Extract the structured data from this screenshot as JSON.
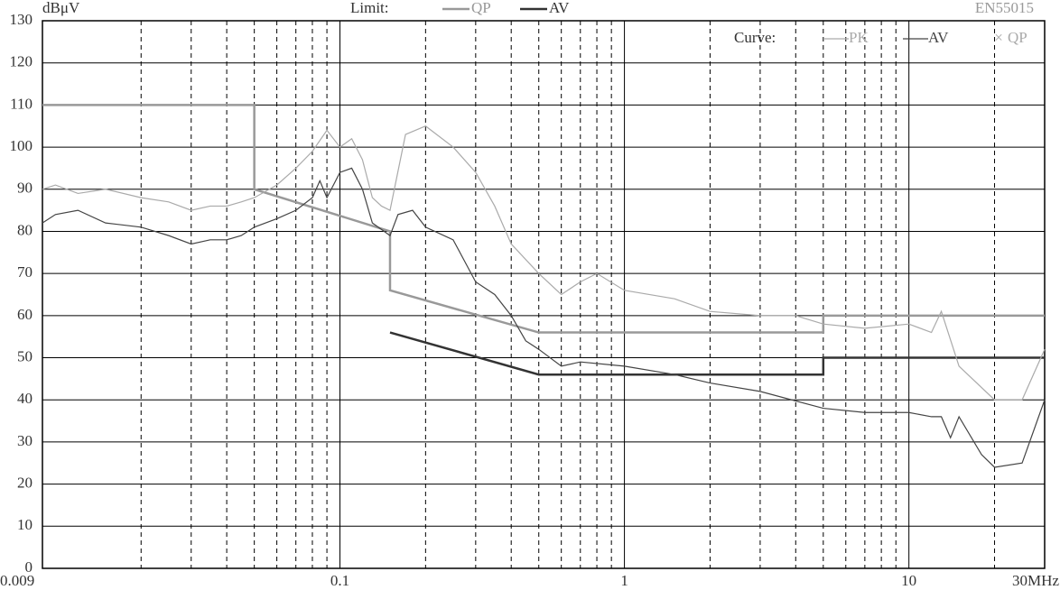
{
  "chart_data": {
    "type": "line",
    "ylabel": "dBμV",
    "standard": "EN55015",
    "limit_label": "Limit:",
    "curve_label": "Curve:",
    "xscale": "log",
    "xlim": [
      0.009,
      30
    ],
    "ylim": [
      0,
      130
    ],
    "xticks": [
      {
        "value": 0.009,
        "label": "0.009"
      },
      0.1,
      1,
      10,
      {
        "value": 30,
        "label": "30MHz"
      }
    ],
    "yticks": [
      0,
      10,
      20,
      30,
      40,
      50,
      60,
      70,
      80,
      90,
      100,
      110,
      120,
      130
    ],
    "x_minor_grid": [
      0.02,
      0.03,
      0.04,
      0.05,
      0.06,
      0.07,
      0.08,
      0.09,
      0.2,
      0.3,
      0.4,
      0.5,
      0.6,
      0.7,
      0.8,
      0.9,
      2,
      3,
      4,
      5,
      6,
      7,
      8,
      9,
      20
    ],
    "grid": true,
    "series": [
      {
        "name": "QP",
        "group": "limit",
        "color": "#999999",
        "x": [
          0.009,
          0.05,
          0.05,
          0.15,
          0.15,
          0.5,
          5,
          5,
          30
        ],
        "values": [
          110,
          110,
          90,
          80,
          66,
          56,
          56,
          60,
          60
        ]
      },
      {
        "name": "AV",
        "group": "limit",
        "color": "#333333",
        "x": [
          0.15,
          0.5,
          5,
          5,
          30
        ],
        "values": [
          56,
          46,
          46,
          50,
          50
        ]
      },
      {
        "name": "PK",
        "group": "curve",
        "color": "#aaaaaa",
        "x": [
          0.009,
          0.01,
          0.012,
          0.015,
          0.02,
          0.025,
          0.03,
          0.035,
          0.04,
          0.045,
          0.05,
          0.06,
          0.07,
          0.08,
          0.09,
          0.1,
          0.11,
          0.12,
          0.13,
          0.14,
          0.15,
          0.17,
          0.2,
          0.25,
          0.3,
          0.35,
          0.4,
          0.5,
          0.6,
          0.7,
          0.8,
          1,
          1.5,
          2,
          3,
          4,
          5,
          7,
          10,
          12,
          13,
          15,
          20,
          25,
          30
        ],
        "values": [
          90,
          91,
          89,
          90,
          88,
          87,
          85,
          86,
          86,
          87,
          88,
          91,
          95,
          99,
          104,
          100,
          102,
          97,
          88,
          86,
          85,
          103,
          105,
          100,
          94,
          86,
          77,
          70,
          65,
          68,
          70,
          66,
          64,
          61,
          60,
          60,
          58,
          57,
          58,
          56,
          61,
          48,
          40,
          40,
          52
        ]
      },
      {
        "name": "AV",
        "group": "curve",
        "color": "#444444",
        "x": [
          0.009,
          0.01,
          0.012,
          0.015,
          0.02,
          0.025,
          0.03,
          0.035,
          0.04,
          0.045,
          0.05,
          0.06,
          0.07,
          0.08,
          0.085,
          0.09,
          0.1,
          0.11,
          0.12,
          0.13,
          0.15,
          0.16,
          0.18,
          0.2,
          0.25,
          0.3,
          0.35,
          0.4,
          0.45,
          0.5,
          0.6,
          0.7,
          1,
          1.5,
          2,
          3,
          5,
          7,
          10,
          12,
          13,
          14,
          15,
          18,
          20,
          25,
          30
        ],
        "values": [
          82,
          84,
          85,
          82,
          81,
          79,
          77,
          78,
          78,
          79,
          81,
          83,
          85,
          88,
          92,
          88,
          94,
          95,
          90,
          82,
          79,
          84,
          85,
          81,
          78,
          68,
          65,
          60,
          54,
          52,
          48,
          49,
          48,
          46,
          44,
          42,
          38,
          37,
          37,
          36,
          36,
          31,
          36,
          27,
          24,
          25,
          40
        ]
      },
      {
        "name": "QP",
        "group": "curve",
        "color": "#aaaaaa",
        "x": [],
        "values": []
      }
    ]
  }
}
